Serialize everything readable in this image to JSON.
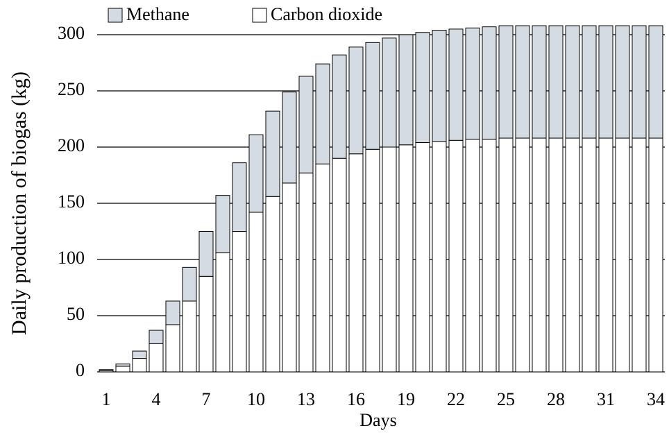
{
  "chart_data": {
    "type": "stacked_bar",
    "x_label": "Days",
    "y_label": "Daily production of biogas (kg)",
    "categories": [
      "1",
      null,
      null,
      "4",
      null,
      null,
      "7",
      null,
      null,
      "10",
      null,
      null,
      "13",
      null,
      null,
      "16",
      null,
      null,
      "19",
      null,
      null,
      "22",
      null,
      null,
      "25",
      null,
      null,
      "28",
      null,
      null,
      "31",
      null,
      null,
      "34"
    ],
    "series": [
      {
        "name": "Methane",
        "color": "#d5dbe3",
        "values": [
          1,
          2,
          6.5,
          12,
          21,
          30,
          40,
          51,
          61,
          69,
          76,
          81,
          86,
          89,
          92,
          95,
          95,
          97,
          98,
          98,
          99,
          99,
          99,
          100,
          100,
          100,
          100,
          100,
          100,
          100,
          100,
          100,
          100,
          100
        ]
      },
      {
        "name": "Carbon dioxide",
        "color": "#ffffff",
        "values": [
          1,
          5,
          12,
          25,
          42,
          63,
          85,
          106,
          125,
          142,
          156,
          168,
          177,
          185,
          190,
          194,
          198,
          200,
          202,
          204,
          205,
          206,
          207,
          207,
          208,
          208,
          208,
          208,
          208,
          208,
          208,
          208,
          208,
          208
        ]
      }
    ],
    "ylim": [
      0,
      300
    ],
    "yticks": [
      0,
      50,
      100,
      150,
      200,
      250,
      300
    ],
    "grid": true
  }
}
